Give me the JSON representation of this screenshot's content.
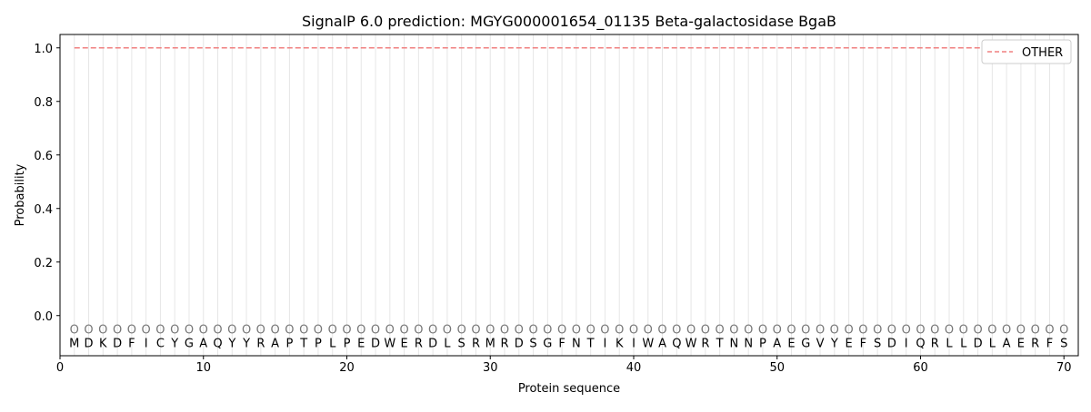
{
  "chart_data": {
    "type": "line",
    "title": "SignalP 6.0 prediction: MGYG000001654_01135 Beta-galactosidase BgaB",
    "xlabel": "Protein sequence",
    "ylabel": "Probability",
    "xlim": [
      0,
      71
    ],
    "ylim": [
      -0.15,
      1.05
    ],
    "xticks": [
      0,
      10,
      20,
      30,
      40,
      50,
      60,
      70
    ],
    "yticks": [
      "0.0",
      "0.2",
      "0.4",
      "0.6",
      "0.8",
      "1.0"
    ],
    "sequence": [
      "M",
      "D",
      "K",
      "D",
      "F",
      "I",
      "C",
      "Y",
      "G",
      "A",
      "Q",
      "Y",
      "Y",
      "R",
      "A",
      "P",
      "T",
      "P",
      "L",
      "P",
      "E",
      "D",
      "W",
      "E",
      "R",
      "D",
      "L",
      "S",
      "R",
      "M",
      "R",
      "D",
      "S",
      "G",
      "F",
      "N",
      "T",
      "I",
      "K",
      "I",
      "W",
      "A",
      "Q",
      "W",
      "R",
      "T",
      "N",
      "N",
      "P",
      "A",
      "E",
      "G",
      "V",
      "Y",
      "E",
      "F",
      "S",
      "D",
      "I",
      "Q",
      "R",
      "L",
      "L",
      "D",
      "L",
      "A",
      "E",
      "R",
      "F",
      "S"
    ],
    "predicted_labels": "OOOOOOOOOOOOOOOOOOOOOOOOOOOOOOOOOOOOOOOOOOOOOOOOOOOOOOOOOOOOOOOOOOOOOO",
    "series": [
      {
        "name": "OTHER",
        "color": "#f08080",
        "style": "dashed",
        "x_start": 1,
        "x_end": 70,
        "value": 1.0
      }
    ],
    "legend": "top-right",
    "grid": "vertical lines at each residue"
  }
}
